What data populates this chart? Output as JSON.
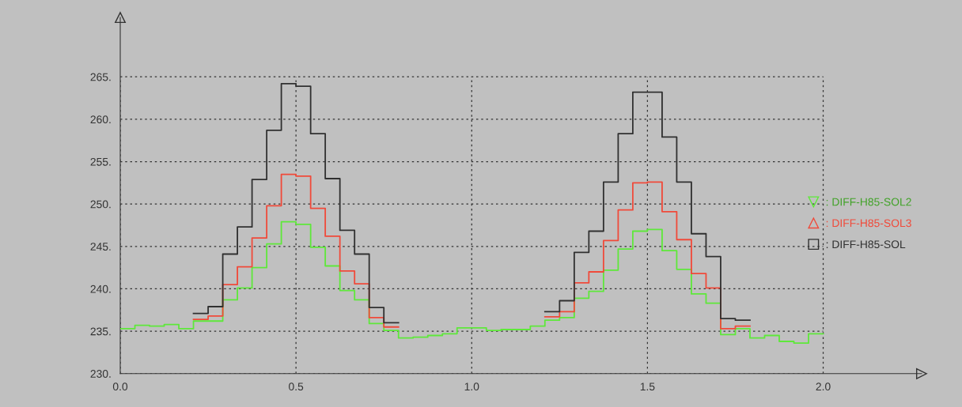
{
  "chart_data": {
    "type": "step",
    "x": [
      0,
      0.0417,
      0.0833,
      0.125,
      0.1667,
      0.2083,
      0.25,
      0.2917,
      0.3333,
      0.375,
      0.4167,
      0.4583,
      0.5,
      0.5417,
      0.5833,
      0.625,
      0.6667,
      0.7083,
      0.75,
      0.7917,
      0.8333,
      0.875,
      0.9167,
      0.9583,
      1.0,
      1.0417,
      1.0833,
      1.125,
      1.1667,
      1.2083,
      1.25,
      1.2917,
      1.3333,
      1.375,
      1.4167,
      1.4583,
      1.5,
      1.5417,
      1.5833,
      1.625,
      1.6667,
      1.7083,
      1.75,
      1.7917,
      1.8333,
      1.875,
      1.9167,
      1.9583,
      2.0
    ],
    "series": [
      {
        "name": ": DIFF-H85-SOL2",
        "color": "#5ee83a",
        "values": [
          235.3,
          235.7,
          235.6,
          235.8,
          235.3,
          236.2,
          236.2,
          238.7,
          240.1,
          242.5,
          245.3,
          247.9,
          247.6,
          244.9,
          242.7,
          239.8,
          238.7,
          235.9,
          235.1,
          234.2,
          234.3,
          234.5,
          234.7,
          235.4,
          235.4,
          235.1,
          235.2,
          235.2,
          235.6,
          236.3,
          236.6,
          238.9,
          239.7,
          242.2,
          244.7,
          246.8,
          247.0,
          244.5,
          242.3,
          239.4,
          238.3,
          234.6,
          235.3,
          234.2,
          234.5,
          233.8,
          233.6,
          234.7,
          234.7
        ]
      },
      {
        "name": ": DIFF-H85-SOL3",
        "color": "#f04a3a",
        "values": [
          null,
          null,
          null,
          null,
          null,
          236.4,
          236.8,
          240.5,
          242.6,
          246.0,
          249.8,
          253.5,
          253.3,
          249.5,
          246.2,
          242.1,
          240.6,
          236.6,
          235.5,
          235.5,
          null,
          null,
          null,
          null,
          null,
          null,
          null,
          null,
          null,
          236.7,
          237.3,
          240.7,
          242.0,
          245.7,
          249.3,
          252.5,
          252.6,
          249.1,
          245.8,
          241.8,
          240.1,
          235.3,
          235.6,
          235.6,
          null,
          null,
          null,
          null,
          null
        ]
      },
      {
        "name": ": DIFF-H85-SOL",
        "color": "#303030",
        "values": [
          null,
          null,
          null,
          null,
          null,
          237.1,
          237.9,
          244.1,
          247.3,
          252.9,
          258.7,
          264.2,
          263.9,
          258.3,
          253.0,
          246.9,
          244.1,
          237.8,
          236.0,
          236.0,
          null,
          null,
          null,
          null,
          null,
          null,
          null,
          null,
          null,
          237.3,
          238.6,
          244.3,
          246.8,
          252.6,
          258.3,
          263.2,
          263.2,
          257.9,
          252.6,
          246.5,
          243.8,
          236.5,
          236.3,
          236.3,
          null,
          null,
          null,
          null,
          null
        ]
      }
    ],
    "xlim": [
      0,
      2.28
    ],
    "ylim": [
      230,
      272
    ],
    "xticks": [
      {
        "value": 0,
        "label": "0.0"
      },
      {
        "value": 0.5,
        "label": "0.5"
      },
      {
        "value": 1,
        "label": "1.0"
      },
      {
        "value": 1.5,
        "label": "1.5"
      },
      {
        "value": 2,
        "label": "2.0"
      }
    ],
    "yticks": [
      {
        "value": 230,
        "label": "230."
      },
      {
        "value": 235,
        "label": "235."
      },
      {
        "value": 240,
        "label": "240."
      },
      {
        "value": 245,
        "label": "245."
      },
      {
        "value": 250,
        "label": "250."
      },
      {
        "value": 255,
        "label": "255."
      },
      {
        "value": 260,
        "label": "260."
      },
      {
        "value": 265,
        "label": "265."
      }
    ],
    "grid": true,
    "legend": "right"
  }
}
